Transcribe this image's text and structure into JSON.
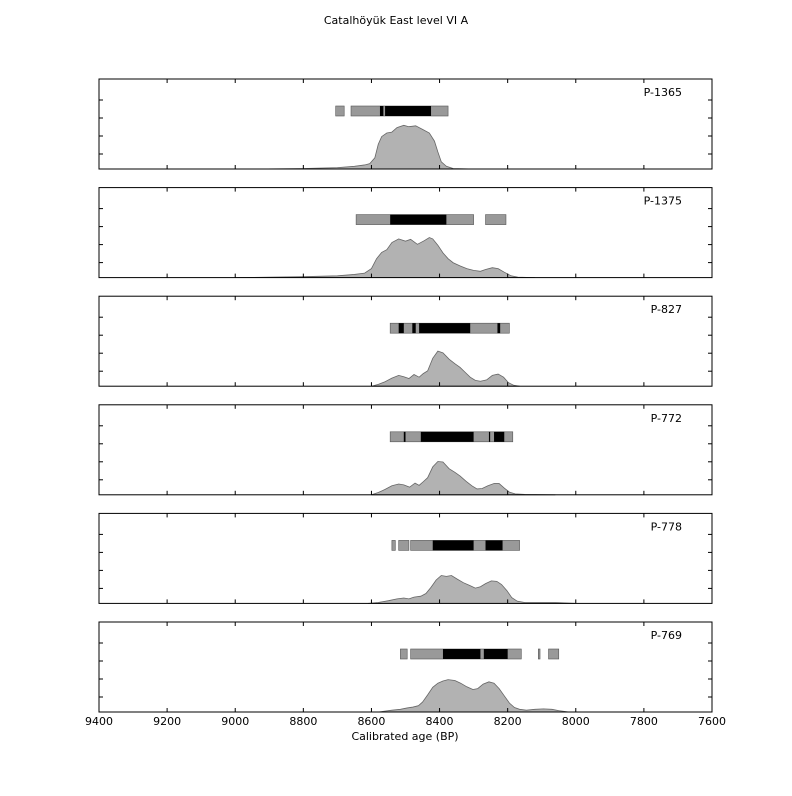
{
  "chart_data": {
    "type": "area",
    "title": "Catalhöyük East level VI A",
    "xlabel": "Calibrated age (BP)",
    "ylabel": "",
    "xlim": [
      9400,
      7600
    ],
    "x_reversed": true,
    "xticks": [
      9400,
      9200,
      9000,
      8800,
      8600,
      8400,
      8200,
      8000,
      7800,
      7600
    ],
    "colors": {
      "density_fill": "#b2b2b2",
      "density_stroke": "#666666",
      "range_95": "#999999",
      "range_68": "#000000",
      "frame": "#000000"
    },
    "panels": [
      {
        "name": "P-1365",
        "density": [
          [
            8940,
            0
          ],
          [
            8800,
            0.01
          ],
          [
            8700,
            0.03
          ],
          [
            8650,
            0.06
          ],
          [
            8620,
            0.09
          ],
          [
            8605,
            0.12
          ],
          [
            8590,
            0.25
          ],
          [
            8580,
            0.55
          ],
          [
            8570,
            0.72
          ],
          [
            8555,
            0.8
          ],
          [
            8540,
            0.82
          ],
          [
            8525,
            0.92
          ],
          [
            8505,
            0.97
          ],
          [
            8490,
            0.94
          ],
          [
            8470,
            0.96
          ],
          [
            8450,
            0.88
          ],
          [
            8430,
            0.8
          ],
          [
            8415,
            0.62
          ],
          [
            8405,
            0.38
          ],
          [
            8395,
            0.16
          ],
          [
            8380,
            0.06
          ],
          [
            8360,
            0.01
          ],
          [
            8300,
            0
          ]
        ],
        "ranges_95": [
          [
            8705,
            8680
          ],
          [
            8660,
            8375
          ]
        ],
        "ranges_68": [
          [
            8575,
            8565
          ],
          [
            8560,
            8425
          ]
        ]
      },
      {
        "name": "P-1375",
        "density": [
          [
            9000,
            0
          ],
          [
            8900,
            0.01
          ],
          [
            8800,
            0.02
          ],
          [
            8700,
            0.04
          ],
          [
            8650,
            0.07
          ],
          [
            8620,
            0.1
          ],
          [
            8600,
            0.2
          ],
          [
            8585,
            0.42
          ],
          [
            8570,
            0.56
          ],
          [
            8555,
            0.62
          ],
          [
            8540,
            0.78
          ],
          [
            8520,
            0.86
          ],
          [
            8500,
            0.81
          ],
          [
            8485,
            0.85
          ],
          [
            8465,
            0.74
          ],
          [
            8445,
            0.82
          ],
          [
            8430,
            0.89
          ],
          [
            8420,
            0.86
          ],
          [
            8405,
            0.72
          ],
          [
            8390,
            0.55
          ],
          [
            8375,
            0.42
          ],
          [
            8360,
            0.33
          ],
          [
            8340,
            0.26
          ],
          [
            8320,
            0.2
          ],
          [
            8300,
            0.16
          ],
          [
            8280,
            0.14
          ],
          [
            8265,
            0.18
          ],
          [
            8245,
            0.22
          ],
          [
            8228,
            0.2
          ],
          [
            8210,
            0.12
          ],
          [
            8190,
            0.04
          ],
          [
            8170,
            0.01
          ],
          [
            8120,
            0
          ]
        ],
        "ranges_95": [
          [
            8645,
            8300
          ],
          [
            8265,
            8205
          ]
        ],
        "ranges_68": [
          [
            8545,
            8380
          ]
        ]
      },
      {
        "name": "P-827",
        "density": [
          [
            8600,
            0
          ],
          [
            8580,
            0.04
          ],
          [
            8560,
            0.1
          ],
          [
            8540,
            0.18
          ],
          [
            8520,
            0.24
          ],
          [
            8505,
            0.21
          ],
          [
            8490,
            0.17
          ],
          [
            8475,
            0.26
          ],
          [
            8460,
            0.2
          ],
          [
            8448,
            0.28
          ],
          [
            8435,
            0.34
          ],
          [
            8420,
            0.62
          ],
          [
            8405,
            0.78
          ],
          [
            8390,
            0.74
          ],
          [
            8372,
            0.6
          ],
          [
            8355,
            0.5
          ],
          [
            8340,
            0.42
          ],
          [
            8325,
            0.31
          ],
          [
            8310,
            0.2
          ],
          [
            8295,
            0.13
          ],
          [
            8280,
            0.11
          ],
          [
            8262,
            0.14
          ],
          [
            8245,
            0.24
          ],
          [
            8228,
            0.27
          ],
          [
            8212,
            0.2
          ],
          [
            8198,
            0.08
          ],
          [
            8182,
            0.02
          ],
          [
            8165,
            0
          ]
        ],
        "ranges_95": [
          [
            8545,
            8195
          ]
        ],
        "ranges_68": [
          [
            8520,
            8505
          ],
          [
            8480,
            8470
          ],
          [
            8460,
            8310
          ],
          [
            8230,
            8222
          ]
        ]
      },
      {
        "name": "P-772",
        "density": [
          [
            8600,
            0
          ],
          [
            8580,
            0.05
          ],
          [
            8560,
            0.12
          ],
          [
            8540,
            0.2
          ],
          [
            8520,
            0.24
          ],
          [
            8505,
            0.22
          ],
          [
            8488,
            0.17
          ],
          [
            8472,
            0.26
          ],
          [
            8460,
            0.21
          ],
          [
            8448,
            0.29
          ],
          [
            8435,
            0.38
          ],
          [
            8420,
            0.62
          ],
          [
            8405,
            0.74
          ],
          [
            8390,
            0.73
          ],
          [
            8372,
            0.58
          ],
          [
            8355,
            0.5
          ],
          [
            8340,
            0.42
          ],
          [
            8322,
            0.3
          ],
          [
            8305,
            0.2
          ],
          [
            8290,
            0.13
          ],
          [
            8275,
            0.14
          ],
          [
            8258,
            0.2
          ],
          [
            8240,
            0.25
          ],
          [
            8225,
            0.25
          ],
          [
            8210,
            0.15
          ],
          [
            8195,
            0.06
          ],
          [
            8178,
            0.02
          ],
          [
            8150,
            0.01
          ],
          [
            8060,
            0
          ]
        ],
        "ranges_95": [
          [
            8545,
            8185
          ]
        ],
        "ranges_68": [
          [
            8505,
            8500
          ],
          [
            8455,
            8300
          ],
          [
            8255,
            8252
          ],
          [
            8240,
            8210
          ]
        ]
      },
      {
        "name": "P-778",
        "density": [
          [
            8610,
            0
          ],
          [
            8580,
            0.02
          ],
          [
            8550,
            0.06
          ],
          [
            8525,
            0.1
          ],
          [
            8505,
            0.12
          ],
          [
            8490,
            0.1
          ],
          [
            8475,
            0.14
          ],
          [
            8455,
            0.16
          ],
          [
            8440,
            0.22
          ],
          [
            8425,
            0.36
          ],
          [
            8410,
            0.52
          ],
          [
            8395,
            0.62
          ],
          [
            8380,
            0.6
          ],
          [
            8365,
            0.62
          ],
          [
            8348,
            0.54
          ],
          [
            8330,
            0.46
          ],
          [
            8312,
            0.4
          ],
          [
            8295,
            0.34
          ],
          [
            8280,
            0.37
          ],
          [
            8265,
            0.44
          ],
          [
            8248,
            0.5
          ],
          [
            8232,
            0.49
          ],
          [
            8218,
            0.42
          ],
          [
            8202,
            0.28
          ],
          [
            8188,
            0.13
          ],
          [
            8172,
            0.05
          ],
          [
            8150,
            0.02
          ],
          [
            8100,
            0.02
          ],
          [
            8060,
            0.02
          ],
          [
            8000,
            0
          ]
        ],
        "ranges_95": [
          [
            8540,
            8530
          ],
          [
            8520,
            8490
          ],
          [
            8485,
            8165
          ]
        ],
        "ranges_68": [
          [
            8420,
            8300
          ],
          [
            8265,
            8215
          ]
        ]
      },
      {
        "name": "P-769",
        "density": [
          [
            8580,
            0
          ],
          [
            8540,
            0.04
          ],
          [
            8515,
            0.06
          ],
          [
            8495,
            0.09
          ],
          [
            8478,
            0.11
          ],
          [
            8462,
            0.14
          ],
          [
            8450,
            0.22
          ],
          [
            8435,
            0.38
          ],
          [
            8420,
            0.55
          ],
          [
            8405,
            0.64
          ],
          [
            8390,
            0.69
          ],
          [
            8375,
            0.72
          ],
          [
            8355,
            0.7
          ],
          [
            8338,
            0.64
          ],
          [
            8320,
            0.56
          ],
          [
            8302,
            0.5
          ],
          [
            8288,
            0.52
          ],
          [
            8272,
            0.62
          ],
          [
            8255,
            0.67
          ],
          [
            8240,
            0.64
          ],
          [
            8225,
            0.52
          ],
          [
            8210,
            0.36
          ],
          [
            8195,
            0.2
          ],
          [
            8180,
            0.1
          ],
          [
            8165,
            0.06
          ],
          [
            8145,
            0.04
          ],
          [
            8120,
            0.06
          ],
          [
            8095,
            0.07
          ],
          [
            8070,
            0.06
          ],
          [
            8050,
            0.03
          ],
          [
            8020,
            0
          ]
        ],
        "ranges_95": [
          [
            8515,
            8495
          ],
          [
            8485,
            8160
          ],
          [
            8110,
            8105
          ],
          [
            8080,
            8050
          ]
        ],
        "ranges_68": [
          [
            8390,
            8280
          ],
          [
            8270,
            8200
          ]
        ]
      }
    ]
  }
}
